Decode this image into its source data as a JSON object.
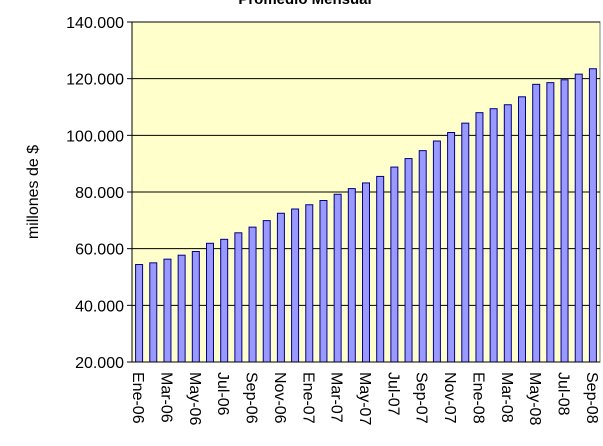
{
  "chart_data": {
    "type": "bar",
    "title": "Promedio Mensual",
    "y_label": "millones de $",
    "categories": [
      "Ene-06",
      null,
      "Mar-06",
      null,
      "May-06",
      null,
      "Jul-06",
      null,
      "Sep-06",
      null,
      "Nov-06",
      null,
      "Ene-07",
      null,
      "Mar-07",
      null,
      "May-07",
      null,
      "Jul-07",
      null,
      "Sep-07",
      null,
      "Nov-07",
      null,
      "Ene-08",
      null,
      "Mar-08",
      null,
      "May-08",
      null,
      "Jul-08",
      null,
      "Sep-08"
    ],
    "values": [
      54400,
      55000,
      56300,
      57700,
      59000,
      61900,
      63300,
      65600,
      67600,
      69900,
      72500,
      74000,
      75500,
      77000,
      79200,
      81200,
      83200,
      85500,
      88800,
      91800,
      94600,
      98000,
      101000,
      104300,
      108000,
      109400,
      110800,
      113600,
      118000,
      118600,
      119600,
      121600,
      123500
    ],
    "color": "#9999ff",
    "edge_color": "#000080",
    "background": "#ffffcc",
    "ylim": [
      20000,
      140000
    ],
    "yticks": [
      {
        "value": 20000,
        "label": "20.000"
      },
      {
        "value": 40000,
        "label": "40.000"
      },
      {
        "value": 60000,
        "label": "60.000"
      },
      {
        "value": 80000,
        "label": "80.000"
      },
      {
        "value": 100000,
        "label": "100.000"
      },
      {
        "value": 120000,
        "label": "120.000"
      },
      {
        "value": 140000,
        "label": "140.000"
      }
    ],
    "grid": true
  }
}
